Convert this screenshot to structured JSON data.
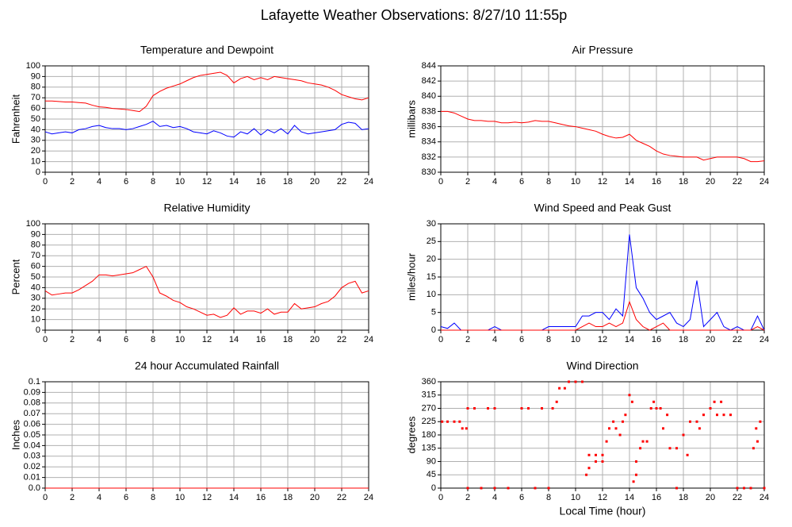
{
  "title": "Lafayette Weather Observations: 8/27/10 11:55p",
  "chart_data": [
    {
      "type": "line",
      "title": "Temperature and Dewpoint",
      "ylabel": "Fahrenheit",
      "x": [
        0,
        0.5,
        1,
        1.5,
        2,
        2.5,
        3,
        3.5,
        4,
        4.5,
        5,
        5.5,
        6,
        6.5,
        7,
        7.5,
        8,
        8.5,
        9,
        9.5,
        10,
        10.5,
        11,
        11.5,
        12,
        12.5,
        13,
        13.5,
        14,
        14.5,
        15,
        15.5,
        16,
        16.5,
        17,
        17.5,
        18,
        18.5,
        19,
        19.5,
        20,
        20.5,
        21,
        21.5,
        22,
        22.5,
        23,
        23.5,
        24
      ],
      "series": [
        {
          "color": "#ff0000",
          "values": [
            67,
            67,
            66.5,
            66,
            66,
            65.5,
            65,
            63,
            61.5,
            61,
            60,
            59.5,
            59,
            58,
            57,
            62,
            72,
            76,
            79,
            81,
            83,
            86,
            89,
            91,
            92,
            93,
            94,
            91,
            84,
            88,
            90,
            87,
            89,
            87,
            90,
            89,
            88,
            87,
            86,
            84,
            83,
            82,
            80,
            77,
            73,
            71,
            69,
            68,
            70
          ]
        },
        {
          "color": "#0000ff",
          "values": [
            38,
            36,
            37,
            38,
            37,
            40,
            41,
            43,
            44,
            42,
            41,
            41,
            40,
            41,
            43,
            45,
            48,
            43,
            44,
            42,
            43,
            41,
            38,
            37,
            36,
            39,
            37,
            34,
            33,
            38,
            36,
            41,
            35,
            40,
            37,
            41,
            36,
            44,
            38,
            36,
            37,
            38,
            39,
            40,
            45,
            47,
            46,
            40,
            41
          ]
        }
      ],
      "xlim": [
        0,
        24
      ],
      "xticks": [
        0,
        2,
        4,
        6,
        8,
        10,
        12,
        14,
        16,
        18,
        20,
        22,
        24
      ],
      "ylim": [
        0,
        100
      ],
      "yticks": [
        0,
        10,
        20,
        30,
        40,
        50,
        60,
        70,
        80,
        90,
        100
      ],
      "grid": true
    },
    {
      "type": "line",
      "title": "Air Pressure",
      "ylabel": "millibars",
      "x": [
        0,
        0.5,
        1,
        1.5,
        2,
        2.5,
        3,
        3.5,
        4,
        4.5,
        5,
        5.5,
        6,
        6.5,
        7,
        7.5,
        8,
        8.5,
        9,
        9.5,
        10,
        10.5,
        11,
        11.5,
        12,
        12.5,
        13,
        13.5,
        14,
        14.5,
        15,
        15.5,
        16,
        16.5,
        17,
        17.5,
        18,
        18.5,
        19,
        19.5,
        20,
        20.5,
        21,
        21.5,
        22,
        22.5,
        23,
        23.5,
        24
      ],
      "series": [
        {
          "color": "#ff0000",
          "values": [
            838,
            838,
            837.8,
            837.4,
            837,
            836.8,
            836.8,
            836.7,
            836.7,
            836.5,
            836.5,
            836.6,
            836.5,
            836.6,
            836.8,
            836.7,
            836.7,
            836.5,
            836.3,
            836.1,
            836,
            835.8,
            835.6,
            835.4,
            835,
            834.7,
            834.5,
            834.6,
            835,
            834.2,
            833.8,
            833.4,
            832.8,
            832.4,
            832.2,
            832.1,
            832,
            832,
            832,
            831.6,
            831.8,
            832,
            832,
            832,
            832,
            831.8,
            831.4,
            831.4,
            831.5
          ]
        }
      ],
      "xlim": [
        0,
        24
      ],
      "xticks": [
        0,
        2,
        4,
        6,
        8,
        10,
        12,
        14,
        16,
        18,
        20,
        22,
        24
      ],
      "ylim": [
        830,
        844
      ],
      "yticks": [
        830,
        832,
        834,
        836,
        838,
        840,
        842,
        844
      ],
      "grid": true
    },
    {
      "type": "line",
      "title": "Relative Humidity",
      "ylabel": "Percent",
      "x": [
        0,
        0.5,
        1,
        1.5,
        2,
        2.5,
        3,
        3.5,
        4,
        4.5,
        5,
        5.5,
        6,
        6.5,
        7,
        7.5,
        8,
        8.5,
        9,
        9.5,
        10,
        10.5,
        11,
        11.5,
        12,
        12.5,
        13,
        13.5,
        14,
        14.5,
        15,
        15.5,
        16,
        16.5,
        17,
        17.5,
        18,
        18.5,
        19,
        19.5,
        20,
        20.5,
        21,
        21.5,
        22,
        22.5,
        23,
        23.5,
        24
      ],
      "series": [
        {
          "color": "#ff0000",
          "values": [
            37,
            33,
            34,
            35,
            35,
            38,
            42,
            46,
            52,
            52,
            51,
            52,
            53,
            54,
            57,
            60,
            50,
            35,
            32,
            28,
            26,
            22,
            20,
            17,
            14,
            15,
            12,
            14,
            21,
            15,
            18,
            18,
            16,
            20,
            15,
            17,
            17,
            25,
            20,
            21,
            22,
            25,
            27,
            32,
            40,
            44,
            46,
            35,
            37
          ]
        }
      ],
      "xlim": [
        0,
        24
      ],
      "xticks": [
        0,
        2,
        4,
        6,
        8,
        10,
        12,
        14,
        16,
        18,
        20,
        22,
        24
      ],
      "ylim": [
        0,
        100
      ],
      "yticks": [
        0,
        10,
        20,
        30,
        40,
        50,
        60,
        70,
        80,
        90,
        100
      ],
      "grid": true
    },
    {
      "type": "line",
      "title": "Wind Speed and Peak Gust",
      "ylabel": "miles/hour",
      "x": [
        0,
        0.5,
        1,
        1.5,
        2,
        2.5,
        3,
        3.5,
        4,
        4.5,
        5,
        5.5,
        6,
        6.5,
        7,
        7.5,
        8,
        8.5,
        9,
        9.5,
        10,
        10.5,
        11,
        11.5,
        12,
        12.5,
        13,
        13.5,
        14,
        14.5,
        15,
        15.5,
        16,
        16.5,
        17,
        17.5,
        18,
        18.5,
        19,
        19.5,
        20,
        20.5,
        21,
        21.5,
        22,
        22.5,
        23,
        23.5,
        24
      ],
      "series": [
        {
          "color": "#0000ff",
          "values": [
            1,
            0.5,
            2,
            0,
            0,
            0,
            0,
            0,
            1,
            0,
            0,
            0,
            0,
            0,
            0,
            0,
            1,
            1,
            1,
            1,
            1,
            4,
            4,
            5,
            5,
            3,
            6,
            4,
            27,
            12,
            9,
            5,
            3,
            4,
            5,
            2,
            1,
            3,
            14,
            1,
            3,
            5,
            1,
            0,
            1,
            0,
            0,
            4,
            0
          ]
        },
        {
          "color": "#ff0000",
          "values": [
            0,
            0,
            0,
            0,
            0,
            0,
            0,
            0,
            0,
            0,
            0,
            0,
            0,
            0,
            0,
            0,
            0,
            0,
            0,
            0,
            0,
            1,
            2,
            1,
            1,
            2,
            1,
            2,
            8,
            3,
            1,
            0,
            1,
            2,
            0,
            0,
            0,
            0,
            0,
            0,
            0,
            0,
            0,
            0,
            0,
            0,
            0,
            1,
            0
          ]
        }
      ],
      "xlim": [
        0,
        24
      ],
      "xticks": [
        0,
        2,
        4,
        6,
        8,
        10,
        12,
        14,
        16,
        18,
        20,
        22,
        24
      ],
      "ylim": [
        0,
        30
      ],
      "yticks": [
        0,
        5,
        10,
        15,
        20,
        25,
        30
      ],
      "grid": true
    },
    {
      "type": "line",
      "title": "24 hour Accumulated Rainfall",
      "ylabel": "Inches",
      "x": [
        0,
        24
      ],
      "series": [
        {
          "color": "#ff0000",
          "values": [
            0,
            0
          ]
        }
      ],
      "xlim": [
        0,
        24
      ],
      "xticks": [
        0,
        2,
        4,
        6,
        8,
        10,
        12,
        14,
        16,
        18,
        20,
        22,
        24
      ],
      "ylim": [
        0,
        0.1
      ],
      "yticks": [
        {
          "value": 0,
          "label": "0.0"
        },
        0.01,
        0.02,
        0.03,
        0.04,
        0.05,
        0.06,
        0.07,
        0.08,
        0.09,
        0.1
      ],
      "grid": true
    },
    {
      "type": "scatter",
      "title": "Wind Direction",
      "ylabel": "degrees",
      "xlabel": "Local Time (hour)",
      "x": [
        0.1,
        0.5,
        1,
        1.4,
        1.6,
        1.9,
        2,
        2.5,
        2,
        3,
        3.5,
        4,
        4,
        5,
        6,
        6.5,
        7,
        7.5,
        8,
        8.3,
        8.6,
        8.8,
        9.2,
        9.5,
        10,
        10.5,
        10.8,
        11,
        11,
        11.5,
        11.5,
        12,
        12,
        12.3,
        12.5,
        12.8,
        13,
        13.3,
        13.5,
        13.7,
        14,
        14.2,
        14.3,
        14.5,
        14.5,
        14.8,
        15,
        15.3,
        15.6,
        15.8,
        16,
        16.3,
        16.5,
        16.8,
        17,
        17.5,
        17.5,
        18,
        18.3,
        18.5,
        19,
        19.2,
        19.5,
        20,
        20.3,
        20.5,
        20.8,
        21,
        21.5,
        22,
        22.5,
        23,
        23.2,
        23.4,
        23.5,
        23.7,
        24
      ],
      "series": [
        {
          "color": "#ff0000",
          "values": [
            225,
            225,
            225,
            225,
            202,
            202,
            270,
            270,
            0,
            0,
            270,
            270,
            0,
            0,
            270,
            270,
            0,
            270,
            0,
            270,
            292,
            338,
            338,
            360,
            360,
            360,
            45,
            68,
            112,
            112,
            90,
            112,
            90,
            158,
            202,
            225,
            202,
            180,
            225,
            248,
            315,
            292,
            22,
            45,
            90,
            135,
            158,
            158,
            270,
            292,
            270,
            270,
            202,
            248,
            135,
            0,
            135,
            180,
            112,
            225,
            225,
            202,
            248,
            270,
            292,
            248,
            292,
            248,
            248,
            0,
            0,
            0,
            135,
            202,
            158,
            225,
            0
          ]
        }
      ],
      "xlim": [
        0,
        24
      ],
      "xticks": [
        0,
        2,
        4,
        6,
        8,
        10,
        12,
        14,
        16,
        18,
        20,
        22,
        24
      ],
      "ylim": [
        0,
        360
      ],
      "yticks": [
        0,
        45,
        90,
        135,
        180,
        225,
        270,
        315,
        360
      ],
      "grid": true
    }
  ]
}
